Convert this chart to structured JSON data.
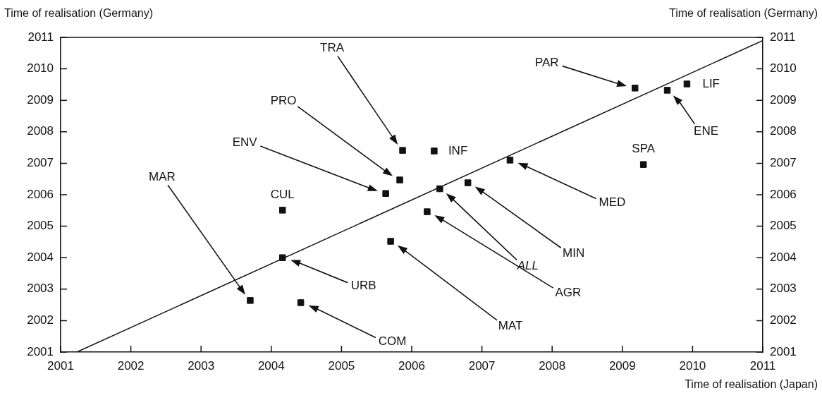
{
  "chart_data": {
    "type": "scatter",
    "ylabel": "Time of realisation (Germany)",
    "y2label": "Time of realisation (Germany)",
    "xlabel": "Time of realisation (Japan)",
    "xlim": [
      2001,
      2011
    ],
    "xticks": [
      2001,
      2002,
      2003,
      2004,
      2005,
      2006,
      2007,
      2008,
      2009,
      2010,
      2011
    ],
    "ylim": [
      2001,
      2011
    ],
    "yticks": [
      2001,
      2002,
      2003,
      2004,
      2005,
      2006,
      2007,
      2008,
      2009,
      2010,
      2011
    ],
    "y2lim": [
      2001,
      2011
    ],
    "y2ticks": [
      2001,
      2002,
      2003,
      2004,
      2005,
      2006,
      2007,
      2008,
      2009,
      2010,
      2011
    ],
    "grid": false,
    "legend": false,
    "marker": "square",
    "series": [
      {
        "type": "scatter",
        "color": "#111111",
        "x": [
          2003.7,
          2004.16,
          2005.63,
          2005.83,
          2005.87,
          2004.16,
          2004.42,
          2005.7,
          2006.32,
          2006.4,
          2006.22,
          2006.8,
          2007.4,
          2009.18,
          2009.64,
          2009.92,
          2009.3
        ],
        "values": [
          2002.64,
          2005.51,
          2006.04,
          2006.47,
          2007.41,
          2004.0,
          2002.57,
          2004.52,
          2007.39,
          2006.19,
          2005.46,
          2006.38,
          2007.1,
          2009.39,
          2009.32,
          2009.52,
          2006.96
        ]
      },
      {
        "type": "line",
        "color": "#111111",
        "marker": "none",
        "x": [
          2001.23,
          2011
        ],
        "values": [
          2001,
          2010.9
        ]
      }
    ],
    "annotations": [
      "MAR",
      {
        "text": "CUL",
        "x": 2004.16,
        "y": 2005.51
      },
      "ENV",
      "PRO",
      "TRA",
      "URB",
      "COM",
      "MAT",
      {
        "text": "INF",
        "x": 2006.32,
        "y": 2007.39
      },
      "ALL",
      "AGR",
      "MIN",
      "MED",
      "PAR",
      "ENE",
      {
        "text": "LIF",
        "x": 2009.92,
        "y": 2009.52
      },
      {
        "text": "SPA",
        "x": 2009.3,
        "y": 2006.96
      }
    ]
  }
}
